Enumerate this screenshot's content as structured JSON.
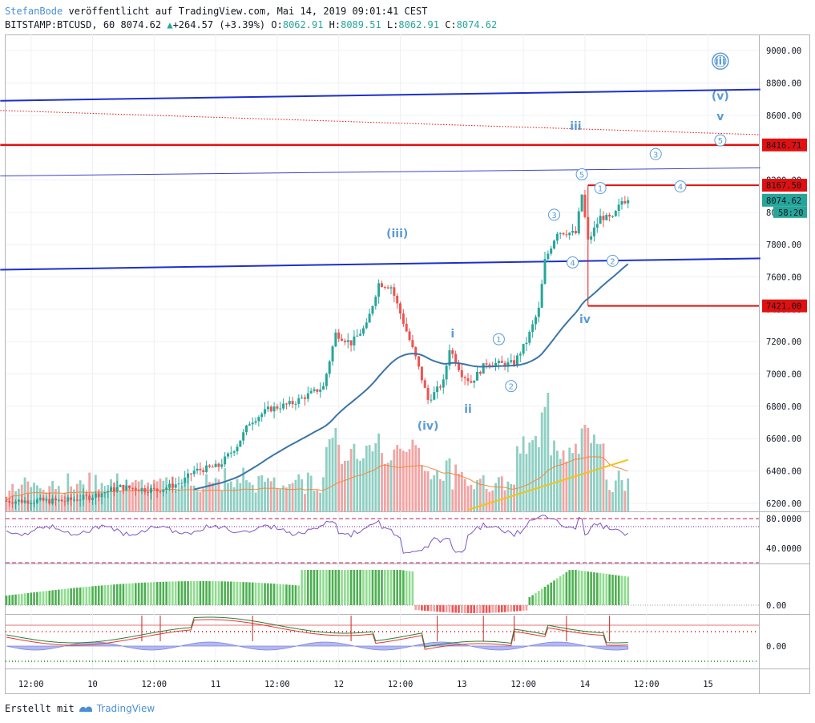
{
  "header": {
    "author": "StefanBode",
    "published": "veröffentlicht auf TradingView.com, Mai 14, 2019 09:01:41 CEST",
    "symbol": "BITSTAMP:BTCUSD, 60",
    "last": "8074.62",
    "change": "+264.57 (+3.39%)",
    "open_label": "O:",
    "open": "8062.91",
    "high_label": "H:",
    "high": "8089.51",
    "low_label": "L:",
    "low": "8062.91",
    "close_label": "C:",
    "close": "8074.62"
  },
  "footer": {
    "created": "Erstellt mit",
    "brand": "TradingView"
  },
  "colors": {
    "up": "#26a69a",
    "down": "#ef5350",
    "up_vol": "#8fcfc3",
    "down_vol": "#f1a4a3",
    "trend": "#1c2fcc",
    "level": "#e01010",
    "wave": "#5b9bd5",
    "ema": "#3a75a8"
  },
  "chart_data": {
    "type": "candlestick",
    "y_axis": {
      "min": 6150,
      "max": 9100,
      "ticks": [
        "9000.00",
        "8800.00",
        "8600.00",
        "8400.00",
        "8200.00",
        "8000.00",
        "7800.00",
        "7600.00",
        "7400.00",
        "7200.00",
        "7000.00",
        "6800.00",
        "6600.00",
        "6400.00",
        "6200.00"
      ]
    },
    "x_ticks": [
      {
        "label": "12:00",
        "i": 8
      },
      {
        "label": "10",
        "i": 28
      },
      {
        "label": "12:00",
        "i": 48
      },
      {
        "label": "11",
        "i": 68
      },
      {
        "label": "12:00",
        "i": 88
      },
      {
        "label": "12",
        "i": 108
      },
      {
        "label": "12:00",
        "i": 128
      },
      {
        "label": "13",
        "i": 148
      },
      {
        "label": "12:00",
        "i": 168
      },
      {
        "label": "14",
        "i": 188
      },
      {
        "label": "12:00",
        "i": 208
      },
      {
        "label": "15",
        "i": 228
      }
    ],
    "candle_count": 203,
    "path_points": [
      [
        0,
        6215
      ],
      [
        20,
        6215
      ],
      [
        28,
        6240
      ],
      [
        38,
        6300
      ],
      [
        50,
        6280
      ],
      [
        58,
        6330
      ],
      [
        62,
        6400
      ],
      [
        70,
        6430
      ],
      [
        76,
        6560
      ],
      [
        80,
        6700
      ],
      [
        86,
        6780
      ],
      [
        94,
        6820
      ],
      [
        100,
        6880
      ],
      [
        104,
        6920
      ],
      [
        108,
        7250
      ],
      [
        113,
        7190
      ],
      [
        118,
        7300
      ],
      [
        122,
        7560
      ],
      [
        126,
        7540
      ],
      [
        130,
        7320
      ],
      [
        134,
        7100
      ],
      [
        138,
        6840
      ],
      [
        140,
        6880
      ],
      [
        143,
        6950
      ],
      [
        145,
        7160
      ],
      [
        149,
        7000
      ],
      [
        152,
        6950
      ],
      [
        157,
        7070
      ],
      [
        163,
        7060
      ],
      [
        166,
        7070
      ],
      [
        170,
        7200
      ],
      [
        174,
        7400
      ],
      [
        176,
        7700
      ],
      [
        180,
        7880
      ],
      [
        186,
        7870
      ],
      [
        188,
        8110
      ],
      [
        190,
        7820
      ],
      [
        194,
        7970
      ],
      [
        198,
        7960
      ],
      [
        201,
        8070
      ],
      [
        203,
        8074
      ]
    ],
    "price_labels": [
      {
        "value": 8416.71,
        "text": "8416.71",
        "color": "#e01010"
      },
      {
        "value": 8167.5,
        "text": "8167.50",
        "color": "#e01010"
      },
      {
        "value": 8074.62,
        "text": "8074.62",
        "color": "#26a69a"
      },
      {
        "value": 7421.0,
        "text": "7421.00",
        "color": "#e01010"
      }
    ],
    "countdown": "58:20",
    "trendlines": [
      {
        "from": [
          -2,
          8690
        ],
        "to": [
          245,
          8760
        ],
        "color": "#1c2fcc",
        "width": 2
      },
      {
        "from": [
          -2,
          7645
        ],
        "to": [
          245,
          7715
        ],
        "color": "#1c2fcc",
        "width": 2
      },
      {
        "from": [
          -2,
          8225
        ],
        "to": [
          245,
          8275
        ],
        "color": "#3b44c8",
        "width": 1
      },
      {
        "from": [
          -2,
          8630
        ],
        "to": [
          245,
          8480
        ],
        "color": "#e01010",
        "width": 1,
        "dotted": true
      }
    ],
    "hlevels": [
      {
        "value": 8416.71,
        "from": -2,
        "color": "#e01010",
        "width": 2.5
      },
      {
        "value": 8167.5,
        "from": 189,
        "color": "#e01010",
        "width": 2
      },
      {
        "value": 7421.0,
        "from": 189,
        "color": "#e01010",
        "width": 2
      }
    ],
    "wave_labels": [
      {
        "text": "iii",
        "i": 232,
        "v": 8935,
        "circled": true,
        "double": true
      },
      {
        "text": "(v)",
        "i": 232,
        "v": 8720
      },
      {
        "text": "v",
        "i": 232,
        "v": 8595
      },
      {
        "text": "iii",
        "i": 185,
        "v": 8535
      },
      {
        "text": "5",
        "i": 232,
        "v": 8445,
        "circled": true
      },
      {
        "text": "3",
        "i": 211,
        "v": 8360,
        "circled": true
      },
      {
        "text": "5",
        "i": 187,
        "v": 8235,
        "circled": true
      },
      {
        "text": "1",
        "i": 193,
        "v": 8150,
        "circled": true
      },
      {
        "text": "4",
        "i": 219,
        "v": 8160,
        "circled": true
      },
      {
        "text": "3",
        "i": 178,
        "v": 7985,
        "circled": true
      },
      {
        "text": "(iii)",
        "i": 127,
        "v": 7870
      },
      {
        "text": "4",
        "i": 184,
        "v": 7690,
        "circled": true
      },
      {
        "text": "2",
        "i": 197,
        "v": 7700,
        "circled": true
      },
      {
        "text": "iv",
        "i": 188,
        "v": 7340
      },
      {
        "text": "i",
        "i": 145,
        "v": 7250
      },
      {
        "text": "1",
        "i": 160,
        "v": 7215,
        "circled": true
      },
      {
        "text": "2",
        "i": 164,
        "v": 6925,
        "circled": true
      },
      {
        "text": "ii",
        "i": 150,
        "v": 6785
      },
      {
        "text": "(iv)",
        "i": 137,
        "v": 6680
      }
    ],
    "rsi_ticks": [
      "80.0000",
      "40.0000"
    ],
    "osc_ticks": [
      "0.00"
    ],
    "osc2_ticks": [
      "0.00"
    ]
  }
}
